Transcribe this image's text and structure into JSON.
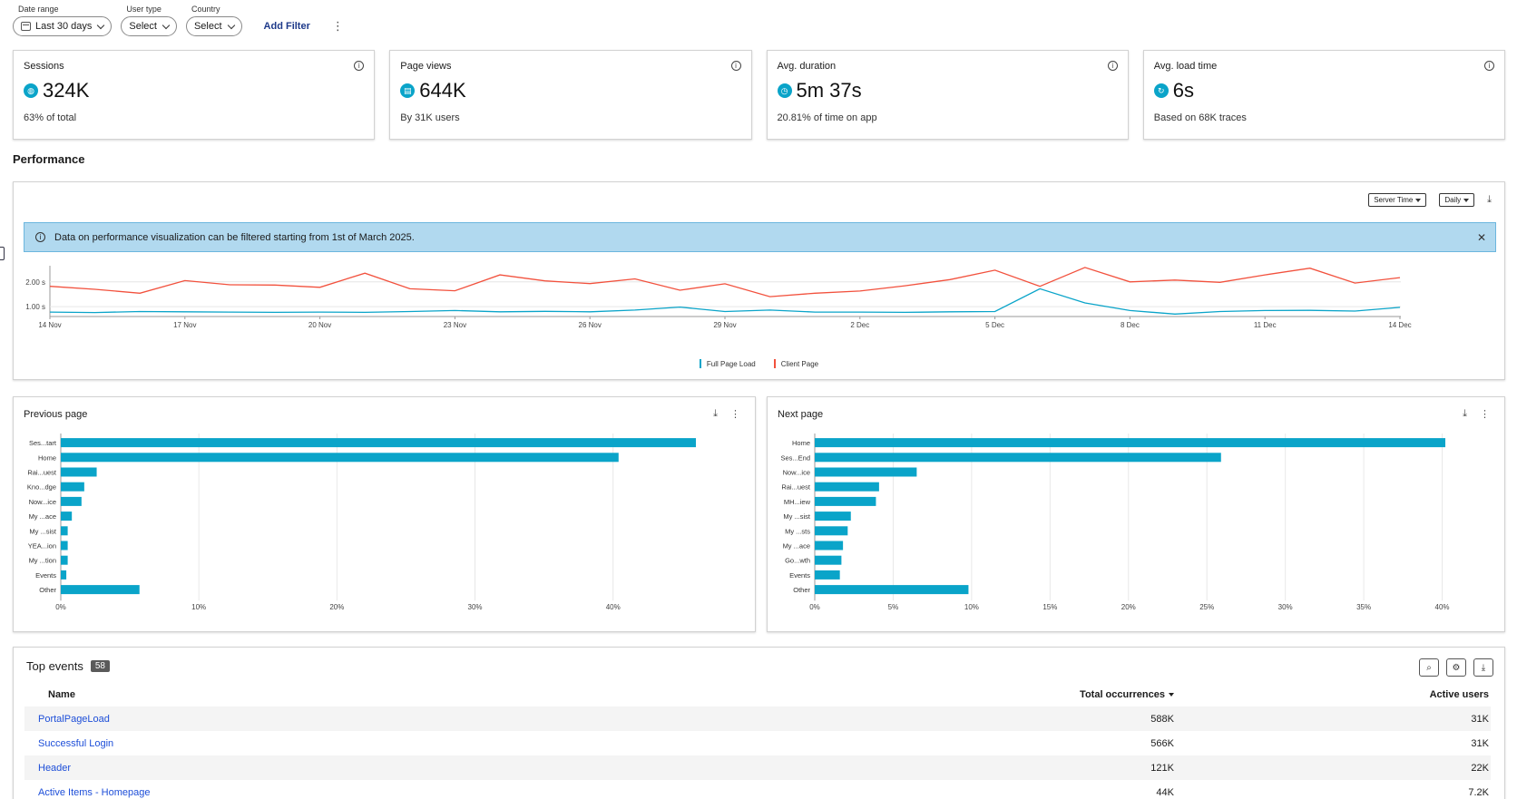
{
  "filters": [
    {
      "label": "Date range",
      "value": "Last 30 days",
      "icon": "calendar-icon"
    },
    {
      "label": "User type",
      "value": "Select"
    },
    {
      "label": "Country",
      "value": "Select"
    }
  ],
  "add_filter_label": "Add Filter",
  "kpis": [
    {
      "title": "Sessions",
      "value": "324K",
      "sub": "63% of total",
      "icon": "globe-icon"
    },
    {
      "title": "Page views",
      "value": "644K",
      "sub": "By 31K users",
      "icon": "page-icon"
    },
    {
      "title": "Avg. duration",
      "value": "5m 37s",
      "sub": "20.81% of time on app",
      "icon": "clock-icon"
    },
    {
      "title": "Avg. load time",
      "value": "6s",
      "sub": "Based on 68K traces",
      "icon": "reload-icon"
    }
  ],
  "performance": {
    "title": "Performance",
    "time_select": "Server Time",
    "interval_select": "Daily",
    "banner_text": "Data on performance visualization can be filtered starting from 1st of March 2025."
  },
  "colors": {
    "accent": "#0aa4c9",
    "client": "#f2513d",
    "link": "#1d4ed8"
  },
  "chart_data": [
    {
      "type": "line",
      "x": [
        "14 Nov",
        "15 Nov",
        "16 Nov",
        "17 Nov",
        "18 Nov",
        "19 Nov",
        "20 Nov",
        "21 Nov",
        "22 Nov",
        "23 Nov",
        "24 Nov",
        "25 Nov",
        "26 Nov",
        "27 Nov",
        "28 Nov",
        "29 Nov",
        "30 Nov",
        "1 Dec",
        "2 Dec",
        "3 Dec",
        "4 Dec",
        "5 Dec",
        "6 Dec",
        "7 Dec",
        "8 Dec",
        "9 Dec",
        "10 Dec",
        "11 Dec",
        "12 Dec",
        "13 Dec",
        "14 Dec"
      ],
      "xticks": [
        "14 Nov",
        "17 Nov",
        "20 Nov",
        "23 Nov",
        "26 Nov",
        "29 Nov",
        "2 Dec",
        "5 Dec",
        "8 Dec",
        "11 Dec",
        "14 Dec"
      ],
      "yticks": [
        "1.00 s",
        "2.00 s"
      ],
      "ylim": [
        0.6,
        2.65
      ],
      "series": [
        {
          "name": "Full Page Load",
          "color": "#0aa4c9",
          "values": [
            0.78,
            0.76,
            0.8,
            0.79,
            0.78,
            0.77,
            0.78,
            0.77,
            0.8,
            0.84,
            0.79,
            0.81,
            0.79,
            0.86,
            0.98,
            0.8,
            0.86,
            0.78,
            0.78,
            0.77,
            0.79,
            0.8,
            1.72,
            1.15,
            0.84,
            0.7,
            0.8,
            0.84,
            0.85,
            0.82,
            0.97
          ]
        },
        {
          "name": "Client Page",
          "color": "#f2513d",
          "values": [
            1.82,
            1.7,
            1.54,
            2.05,
            1.88,
            1.87,
            1.78,
            2.35,
            1.72,
            1.64,
            2.28,
            2.04,
            1.93,
            2.12,
            1.66,
            1.92,
            1.4,
            1.54,
            1.63,
            1.84,
            2.09,
            2.47,
            1.82,
            2.58,
            2.0,
            2.07,
            1.98,
            2.28,
            2.55,
            1.95,
            2.17
          ]
        }
      ]
    },
    {
      "type": "bar",
      "title": "Previous page",
      "categories": [
        "Ses...tart",
        "Home",
        "Rai...uest",
        "Kno...dge",
        "Now...ice",
        "My ...ace",
        "My ...sist",
        "YEA...ion",
        "My ...tion",
        "Events",
        "Other"
      ],
      "values": [
        46,
        40.4,
        2.6,
        1.7,
        1.5,
        0.8,
        0.5,
        0.5,
        0.5,
        0.4,
        5.7
      ],
      "xticks": [
        "0%",
        "10%",
        "20%",
        "30%",
        "40%"
      ],
      "xlim": [
        0,
        46
      ]
    },
    {
      "type": "bar",
      "title": "Next page",
      "categories": [
        "Home",
        "Ses...End",
        "Now...ice",
        "Rai...uest",
        "MH...iew",
        "My ...sist",
        "My ...sts",
        "My ...ace",
        "Go...wth",
        "Events",
        "Other"
      ],
      "values": [
        40.2,
        25.9,
        6.5,
        4.1,
        3.9,
        2.3,
        2.1,
        1.8,
        1.7,
        1.6,
        9.8
      ],
      "xticks": [
        "0%",
        "5%",
        "10%",
        "15%",
        "20%",
        "25%",
        "30%",
        "35%",
        "40%"
      ],
      "xlim": [
        0,
        40.2
      ]
    }
  ],
  "top_events": {
    "title": "Top events",
    "count": "58",
    "columns": {
      "name": "Name",
      "total": "Total occurrences",
      "active": "Active users"
    },
    "rows": [
      {
        "name": "PortalPageLoad",
        "total": "588K",
        "active": "31K"
      },
      {
        "name": "Successful Login",
        "total": "566K",
        "active": "31K"
      },
      {
        "name": "Header",
        "total": "121K",
        "active": "22K"
      },
      {
        "name": "Active Items - Homepage",
        "total": "44K",
        "active": "7.2K"
      }
    ]
  }
}
